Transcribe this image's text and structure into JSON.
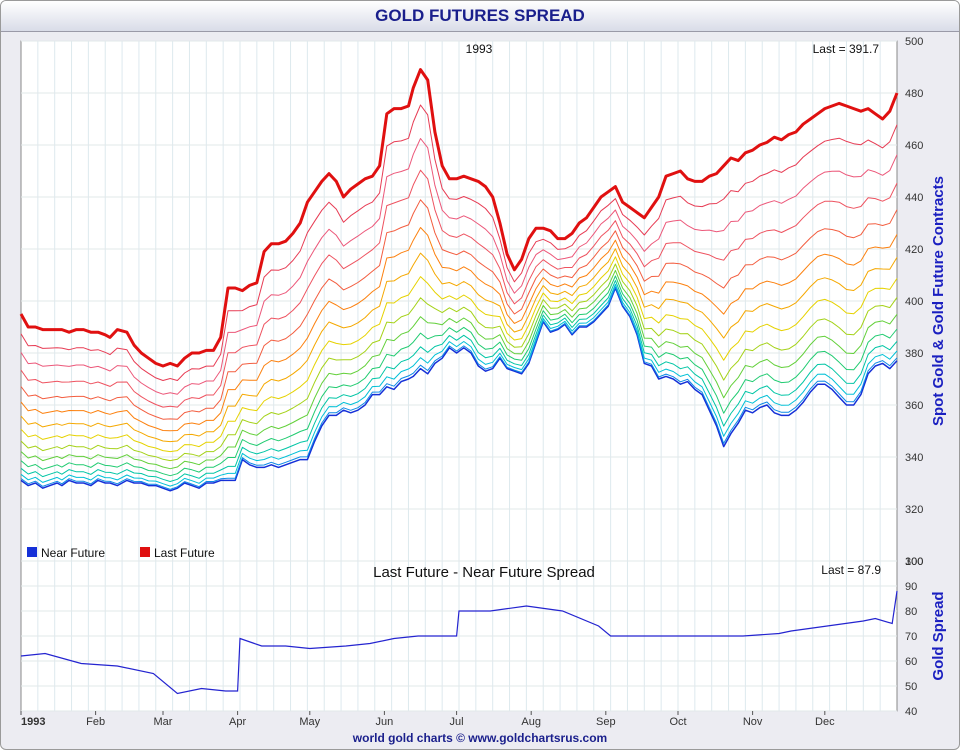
{
  "title": "GOLD FUTURES SPREAD",
  "footer": "world gold charts © www.goldchartsrus.com",
  "colors": {
    "title": "#1a1f8c",
    "axis_label": "#1a1fc0",
    "near": "#1530d8",
    "last": "#e01010",
    "spread": "#2424d0"
  },
  "chart_data": [
    {
      "type": "line",
      "label_top": "1993",
      "last_label": "Last = 391.7",
      "ylabel": "Spot Gold & Gold Future Contracts",
      "ylim": [
        300,
        500
      ],
      "yticks": [
        300,
        320,
        340,
        360,
        380,
        400,
        420,
        440,
        460,
        480,
        500
      ],
      "legend": [
        {
          "name": "Near Future",
          "color": "#1530d8"
        },
        {
          "name": "Last Future",
          "color": "#e01010"
        }
      ],
      "legend_placement": "bottom-left",
      "grid": true,
      "contracts": 14,
      "x": [
        0,
        3,
        6,
        9,
        12,
        15,
        17,
        20,
        23,
        26,
        29,
        32,
        35,
        37,
        40,
        44,
        47,
        50,
        53,
        56,
        59,
        62,
        65,
        68,
        71,
        74,
        77,
        80,
        83,
        86,
        89,
        92,
        95,
        98,
        101,
        104,
        107,
        110,
        113,
        116,
        119,
        122,
        125,
        128,
        131,
        134,
        137,
        140,
        143,
        146,
        149,
        152,
        155,
        158,
        161,
        163,
        166,
        169,
        172,
        175,
        178,
        181,
        184,
        187,
        190,
        193,
        196,
        199,
        202,
        205,
        208,
        211,
        214,
        217,
        220,
        223,
        226,
        229,
        232,
        235,
        238,
        241,
        244,
        247,
        250,
        253,
        256,
        259,
        262,
        265,
        268,
        271,
        274,
        277,
        280,
        283,
        286,
        289,
        292,
        295,
        298,
        301,
        304,
        307,
        310,
        313,
        316,
        319,
        322,
        325,
        328,
        331,
        334,
        337,
        340,
        343,
        346,
        349,
        352,
        355,
        358,
        361,
        364
      ],
      "near_future": [
        331,
        329,
        330,
        328,
        329,
        330,
        329,
        331,
        330,
        330,
        329,
        331,
        330,
        330,
        329,
        331,
        330,
        330,
        329,
        329,
        328,
        327,
        328,
        330,
        329,
        328,
        330,
        330,
        331,
        331,
        331,
        339,
        337,
        336,
        336,
        337,
        336,
        337,
        338,
        339,
        339,
        346,
        352,
        356,
        356,
        358,
        357,
        358,
        360,
        364,
        364,
        367,
        366,
        369,
        370,
        371,
        374,
        372,
        376,
        378,
        382,
        380,
        382,
        380,
        375,
        373,
        374,
        378,
        374,
        373,
        372,
        376,
        384,
        392,
        388,
        389,
        391,
        387,
        390,
        390,
        392,
        395,
        398,
        405,
        398,
        394,
        387,
        376,
        375,
        370,
        371,
        370,
        368,
        369,
        366,
        364,
        358,
        352,
        344,
        349,
        353,
        358,
        357,
        359,
        360,
        357,
        356,
        356,
        358,
        361,
        365,
        368,
        368,
        366,
        363,
        360,
        360,
        364,
        372,
        375,
        376,
        374,
        377
      ],
      "last_future": [
        395,
        390,
        390,
        389,
        389,
        389,
        389,
        388,
        389,
        389,
        388,
        388,
        387,
        386,
        389,
        388,
        383,
        380,
        378,
        376,
        375,
        376,
        375,
        378,
        380,
        380,
        381,
        381,
        386,
        405,
        405,
        404,
        406,
        407,
        419,
        422,
        422,
        423,
        426,
        430,
        438,
        442,
        446,
        449,
        446,
        440,
        443,
        445,
        447,
        448,
        452,
        472,
        474,
        474,
        475,
        482,
        489,
        485,
        465,
        452,
        447,
        447,
        448,
        447,
        446,
        444,
        440,
        430,
        418,
        412,
        416,
        424,
        428,
        428,
        427,
        424,
        424,
        426,
        430,
        432,
        436,
        440,
        442,
        444,
        438,
        436,
        434,
        432,
        436,
        440,
        448,
        449,
        450,
        447,
        446,
        446,
        448,
        449,
        452,
        455,
        454,
        457,
        458,
        460,
        461,
        463,
        462,
        464,
        465,
        468,
        470,
        472,
        474,
        475,
        476,
        475,
        474,
        473,
        474,
        472,
        470,
        473,
        480
      ]
    },
    {
      "type": "line",
      "title": "Last Future - Near Future Spread",
      "last_label": "Last = 87.9",
      "ylabel": "Gold Spread",
      "ylim": [
        40,
        100
      ],
      "yticks": [
        40,
        50,
        60,
        70,
        80,
        90,
        100
      ],
      "grid": true,
      "x_tick_labels": [
        "1993",
        "Feb",
        "Mar",
        "Apr",
        "May",
        "Jun",
        "Jul",
        "Aug",
        "Sep",
        "Oct",
        "Nov",
        "Dec"
      ],
      "x_tick_days": [
        0,
        31,
        59,
        90,
        120,
        151,
        181,
        212,
        243,
        273,
        304,
        334
      ],
      "x_days": [
        0,
        10,
        25,
        40,
        55,
        65,
        75,
        85,
        90,
        91,
        100,
        110,
        120,
        135,
        145,
        155,
        165,
        181,
        182,
        195,
        210,
        225,
        240,
        245,
        260,
        280,
        300,
        315,
        320,
        335,
        350,
        355,
        362,
        364
      ],
      "spread": [
        62,
        63,
        59,
        58,
        55,
        47,
        49,
        48,
        48,
        69,
        66,
        66,
        65,
        66,
        67,
        69,
        70,
        70,
        80,
        80,
        82,
        80,
        74,
        70,
        70,
        70,
        70,
        71,
        72,
        74,
        76,
        77,
        75,
        88
      ]
    }
  ]
}
